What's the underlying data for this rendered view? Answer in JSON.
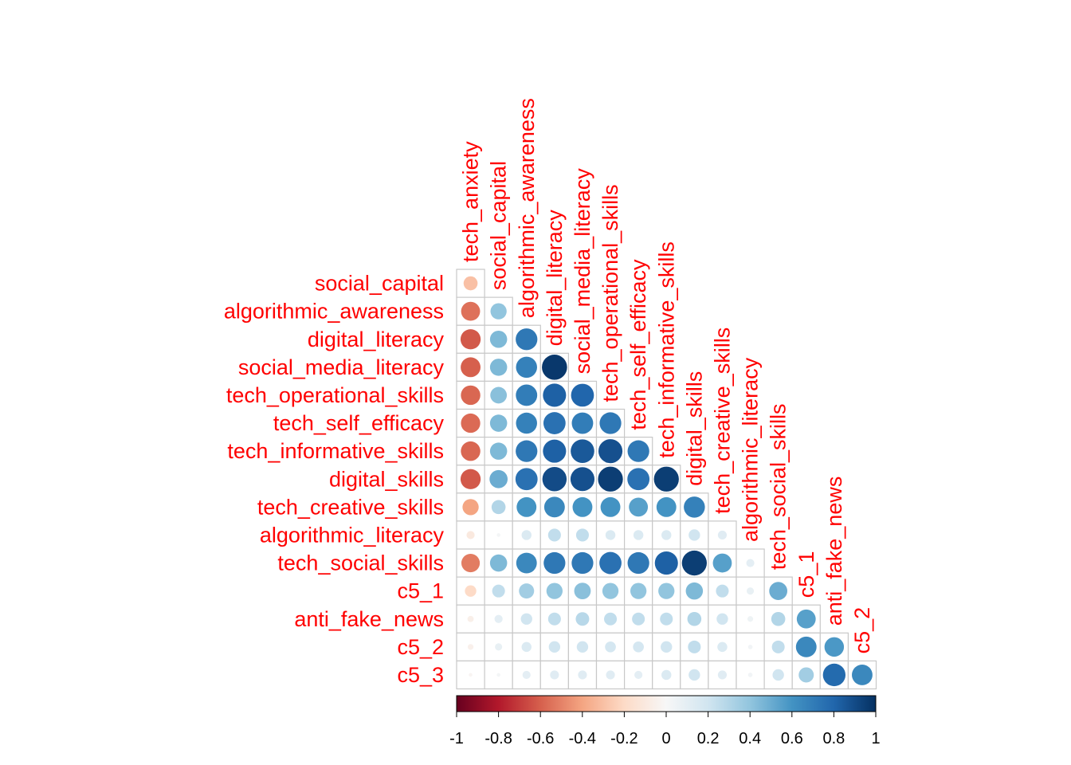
{
  "chart_data": {
    "type": "heatmap",
    "variant": "correlation-lower-triangle-circles",
    "title": "",
    "variables": [
      "tech_anxiety",
      "social_capital",
      "algorithmic_awareness",
      "digital_literacy",
      "social_media_literacy",
      "tech_operational_skills",
      "tech_self_efficacy",
      "tech_informative_skills",
      "digital_skills",
      "tech_creative_skills",
      "algorithmic_literacy",
      "tech_social_skills",
      "c5_1",
      "anti_fake_news",
      "c5_2",
      "c5_3"
    ],
    "row_labels": [
      "social_capital",
      "algorithmic_awareness",
      "digital_literacy",
      "social_media_literacy",
      "tech_operational_skills",
      "tech_self_efficacy",
      "tech_informative_skills",
      "digital_skills",
      "tech_creative_skills",
      "algorithmic_literacy",
      "tech_social_skills",
      "c5_1",
      "anti_fake_news",
      "c5_2",
      "c5_3"
    ],
    "column_labels": [
      "tech_anxiety",
      "social_capital",
      "algorithmic_awareness",
      "digital_literacy",
      "social_media_literacy",
      "tech_operational_skills",
      "tech_self_efficacy",
      "tech_informative_skills",
      "digital_skills",
      "tech_creative_skills",
      "algorithmic_literacy",
      "tech_social_skills",
      "c5_1",
      "anti_fake_news",
      "c5_2"
    ],
    "matrix_lower": [
      [
        -0.3
      ],
      [
        -0.55,
        0.4
      ],
      [
        -0.62,
        0.45,
        0.72
      ],
      [
        -0.6,
        0.45,
        0.68,
        0.97
      ],
      [
        -0.58,
        0.42,
        0.7,
        0.82,
        0.8
      ],
      [
        -0.57,
        0.45,
        0.68,
        0.75,
        0.7,
        0.72
      ],
      [
        -0.58,
        0.45,
        0.72,
        0.82,
        0.85,
        0.88,
        0.72
      ],
      [
        -0.62,
        0.5,
        0.75,
        0.9,
        0.88,
        0.95,
        0.75,
        0.95
      ],
      [
        -0.4,
        0.3,
        0.6,
        0.65,
        0.6,
        0.6,
        0.55,
        0.6,
        0.68
      ],
      [
        -0.1,
        0.02,
        0.15,
        0.25,
        0.25,
        0.15,
        0.15,
        0.15,
        0.2,
        0.12
      ],
      [
        -0.52,
        0.45,
        0.65,
        0.72,
        0.72,
        0.75,
        0.72,
        0.82,
        0.95,
        0.55,
        0.1
      ],
      [
        -0.2,
        0.25,
        0.35,
        0.4,
        0.42,
        0.4,
        0.4,
        0.4,
        0.45,
        0.25,
        0.08,
        0.5
      ],
      [
        -0.06,
        0.1,
        0.2,
        0.25,
        0.28,
        0.25,
        0.25,
        0.25,
        0.3,
        0.2,
        0.05,
        0.3,
        0.55
      ],
      [
        -0.05,
        0.08,
        0.15,
        0.2,
        0.2,
        0.18,
        0.18,
        0.2,
        0.25,
        0.15,
        0.03,
        0.25,
        0.65,
        0.58
      ],
      [
        -0.02,
        0.02,
        0.1,
        0.12,
        0.12,
        0.12,
        0.1,
        0.15,
        0.2,
        0.12,
        0.03,
        0.2,
        0.35,
        0.78,
        0.65
      ]
    ],
    "colorbar": {
      "range": [
        -1,
        1
      ],
      "ticks": [
        "-1",
        "-0.8",
        "-0.6",
        "-0.4",
        "-0.2",
        "0",
        "0.2",
        "0.4",
        "0.6",
        "0.8",
        "1"
      ],
      "orientation": "horizontal",
      "placement": "bottom"
    },
    "label_color": "#FF0000",
    "grid_color": "#C8C8C8",
    "colors": {
      "negative_end": "#67001F",
      "neutral": "#FFFFFF",
      "positive_end": "#053061"
    }
  }
}
